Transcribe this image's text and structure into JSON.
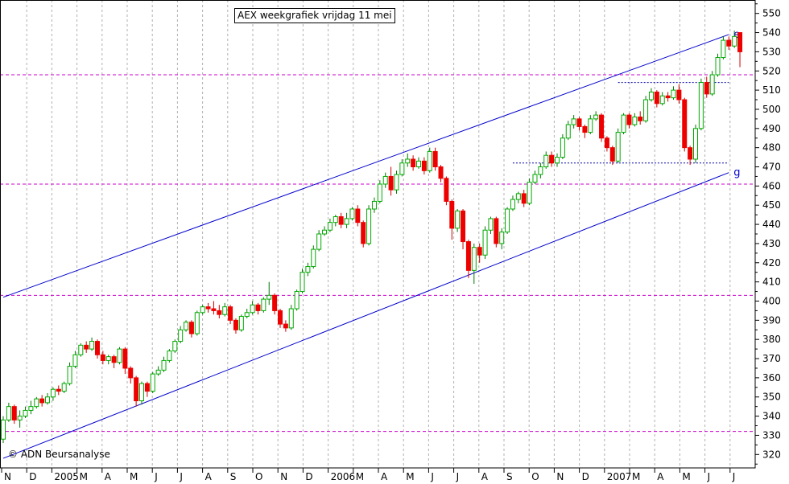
{
  "title": "AEX weekgrafiek vrijdag 11 mei",
  "credit": "© ADN Beursanalyse",
  "chart_data": {
    "type": "candlestick",
    "ylim": [
      313,
      557
    ],
    "yticks": [
      320,
      330,
      340,
      350,
      360,
      370,
      380,
      390,
      400,
      410,
      420,
      430,
      440,
      450,
      460,
      470,
      480,
      490,
      500,
      510,
      520,
      530,
      540,
      550
    ],
    "y_axis_side": "right",
    "grid": "vertical dashed monthly",
    "x_labels": [
      "N",
      "D",
      "2005",
      "M",
      "A",
      "M",
      "J",
      "J",
      "A",
      "S",
      "O",
      "N",
      "D",
      "2006",
      "M",
      "A",
      "M",
      "J",
      "J",
      "A",
      "S",
      "O",
      "N",
      "D",
      "2007",
      "M",
      "A",
      "M",
      "J",
      "J"
    ],
    "colors": {
      "up": "#00aa00",
      "down": "#ee0000",
      "trendline": "#0000cc",
      "support": "#cc00cc",
      "level": "#0000aa"
    },
    "trendlines": [
      {
        "label": "e",
        "from": [
          0,
          402
        ],
        "to": [
          131,
          539
        ]
      },
      {
        "label": "g",
        "from": [
          0,
          318
        ],
        "to": [
          131,
          467
        ]
      }
    ],
    "horizontal_levels": [
      {
        "value": 518,
        "style": "dashed",
        "color": "#cc00cc"
      },
      {
        "value": 461,
        "style": "dashed",
        "color": "#cc00cc"
      },
      {
        "value": 403,
        "style": "dashed",
        "color": "#cc00cc"
      },
      {
        "value": 332,
        "style": "dashed",
        "color": "#cc00cc"
      },
      {
        "value": 514,
        "from": 111,
        "to": 131,
        "style": "dotted",
        "color": "#0000aa"
      },
      {
        "value": 472,
        "from": 92,
        "to": 131,
        "style": "dotted",
        "color": "#0000aa"
      }
    ],
    "candles": [
      [
        328,
        338,
        326,
        340
      ],
      [
        338,
        345,
        337,
        347
      ],
      [
        345,
        338,
        336,
        346
      ],
      [
        338,
        340,
        334,
        343
      ],
      [
        340,
        343,
        339,
        345
      ],
      [
        343,
        345,
        341,
        348
      ],
      [
        345,
        349,
        344,
        350
      ],
      [
        349,
        347,
        345,
        351
      ],
      [
        347,
        350,
        346,
        352
      ],
      [
        350,
        354,
        348,
        355
      ],
      [
        354,
        353,
        351,
        356
      ],
      [
        353,
        357,
        352,
        358
      ],
      [
        357,
        366,
        356,
        368
      ],
      [
        366,
        372,
        365,
        374
      ],
      [
        372,
        377,
        371,
        378
      ],
      [
        377,
        375,
        373,
        379
      ],
      [
        375,
        379,
        374,
        381
      ],
      [
        379,
        372,
        370,
        380
      ],
      [
        372,
        369,
        367,
        374
      ],
      [
        369,
        371,
        367,
        372
      ],
      [
        371,
        368,
        365,
        372
      ],
      [
        368,
        375,
        367,
        376
      ],
      [
        375,
        365,
        362,
        376
      ],
      [
        365,
        360,
        357,
        366
      ],
      [
        360,
        348,
        345,
        361
      ],
      [
        348,
        357,
        346,
        358
      ],
      [
        357,
        353,
        350,
        358
      ],
      [
        353,
        362,
        352,
        363
      ],
      [
        362,
        364,
        361,
        366
      ],
      [
        364,
        369,
        363,
        371
      ],
      [
        369,
        374,
        368,
        375
      ],
      [
        374,
        379,
        373,
        380
      ],
      [
        379,
        385,
        378,
        387
      ],
      [
        385,
        389,
        384,
        390
      ],
      [
        389,
        383,
        381,
        390
      ],
      [
        383,
        394,
        382,
        395
      ],
      [
        394,
        397,
        393,
        398
      ],
      [
        397,
        396,
        394,
        399
      ],
      [
        396,
        395,
        393,
        400
      ],
      [
        395,
        393,
        391,
        398
      ],
      [
        393,
        397,
        392,
        399
      ],
      [
        397,
        390,
        388,
        398
      ],
      [
        390,
        385,
        383,
        391
      ],
      [
        385,
        392,
        384,
        393
      ],
      [
        392,
        394,
        391,
        396
      ],
      [
        394,
        398,
        393,
        400
      ],
      [
        398,
        395,
        393,
        399
      ],
      [
        395,
        401,
        394,
        402
      ],
      [
        401,
        403,
        398,
        410
      ],
      [
        403,
        395,
        393,
        404
      ],
      [
        395,
        388,
        386,
        396
      ],
      [
        388,
        386,
        384,
        390
      ],
      [
        386,
        396,
        385,
        398
      ],
      [
        396,
        405,
        395,
        406
      ],
      [
        405,
        415,
        404,
        417
      ],
      [
        415,
        418,
        413,
        420
      ],
      [
        418,
        427,
        417,
        429
      ],
      [
        427,
        435,
        426,
        437
      ],
      [
        435,
        437,
        434,
        439
      ],
      [
        437,
        441,
        436,
        443
      ],
      [
        441,
        444,
        439,
        445
      ],
      [
        444,
        440,
        438,
        446
      ],
      [
        440,
        443,
        438,
        446
      ],
      [
        443,
        448,
        442,
        449
      ],
      [
        448,
        441,
        439,
        450
      ],
      [
        441,
        430,
        428,
        442
      ],
      [
        430,
        448,
        429,
        450
      ],
      [
        448,
        452,
        446,
        454
      ],
      [
        452,
        461,
        451,
        463
      ],
      [
        461,
        465,
        459,
        467
      ],
      [
        465,
        458,
        455,
        470
      ],
      [
        458,
        466,
        456,
        468
      ],
      [
        466,
        472,
        465,
        474
      ],
      [
        472,
        474,
        470,
        477
      ],
      [
        474,
        470,
        468,
        476
      ],
      [
        470,
        473,
        469,
        475
      ],
      [
        473,
        468,
        466,
        475
      ],
      [
        468,
        478,
        467,
        480
      ],
      [
        478,
        470,
        468,
        480
      ],
      [
        470,
        464,
        462,
        471
      ],
      [
        464,
        452,
        450,
        465
      ],
      [
        452,
        438,
        432,
        453
      ],
      [
        438,
        447,
        436,
        448
      ],
      [
        447,
        431,
        427,
        448
      ],
      [
        431,
        416,
        412,
        432
      ],
      [
        416,
        428,
        409,
        430
      ],
      [
        428,
        424,
        420,
        430
      ],
      [
        424,
        437,
        422,
        439
      ],
      [
        437,
        443,
        435,
        444
      ],
      [
        443,
        430,
        428,
        444
      ],
      [
        430,
        436,
        427,
        438
      ],
      [
        436,
        448,
        435,
        449
      ],
      [
        448,
        453,
        447,
        455
      ],
      [
        453,
        456,
        451,
        457
      ],
      [
        456,
        451,
        449,
        458
      ],
      [
        451,
        462,
        450,
        464
      ],
      [
        462,
        466,
        461,
        468
      ],
      [
        466,
        470,
        464,
        472
      ],
      [
        470,
        476,
        469,
        478
      ],
      [
        476,
        472,
        470,
        478
      ],
      [
        472,
        475,
        470,
        477
      ],
      [
        475,
        485,
        474,
        487
      ],
      [
        485,
        492,
        484,
        494
      ],
      [
        492,
        495,
        490,
        497
      ],
      [
        495,
        491,
        489,
        496
      ],
      [
        491,
        488,
        485,
        492
      ],
      [
        488,
        495,
        487,
        497
      ],
      [
        495,
        497,
        494,
        499
      ],
      [
        497,
        485,
        483,
        498
      ],
      [
        485,
        480,
        478,
        486
      ],
      [
        480,
        473,
        471,
        481
      ],
      [
        473,
        488,
        472,
        490
      ],
      [
        488,
        497,
        487,
        498
      ],
      [
        497,
        492,
        490,
        498
      ],
      [
        492,
        496,
        491,
        498
      ],
      [
        496,
        494,
        492,
        499
      ],
      [
        494,
        505,
        493,
        507
      ],
      [
        505,
        509,
        504,
        511
      ],
      [
        509,
        503,
        501,
        510
      ],
      [
        503,
        507,
        502,
        509
      ],
      [
        507,
        506,
        504,
        509
      ],
      [
        506,
        510,
        505,
        512
      ],
      [
        510,
        505,
        503,
        513
      ],
      [
        505,
        480,
        478,
        506
      ],
      [
        480,
        474,
        471,
        481
      ],
      [
        474,
        490,
        472,
        492
      ],
      [
        490,
        514,
        489,
        516
      ],
      [
        514,
        508,
        506,
        517
      ],
      [
        508,
        518,
        507,
        520
      ],
      [
        518,
        527,
        517,
        529
      ],
      [
        527,
        536,
        526,
        538
      ],
      [
        536,
        533,
        531,
        538
      ],
      [
        533,
        538,
        532,
        541
      ],
      [
        540,
        530,
        522,
        540
      ]
    ]
  }
}
